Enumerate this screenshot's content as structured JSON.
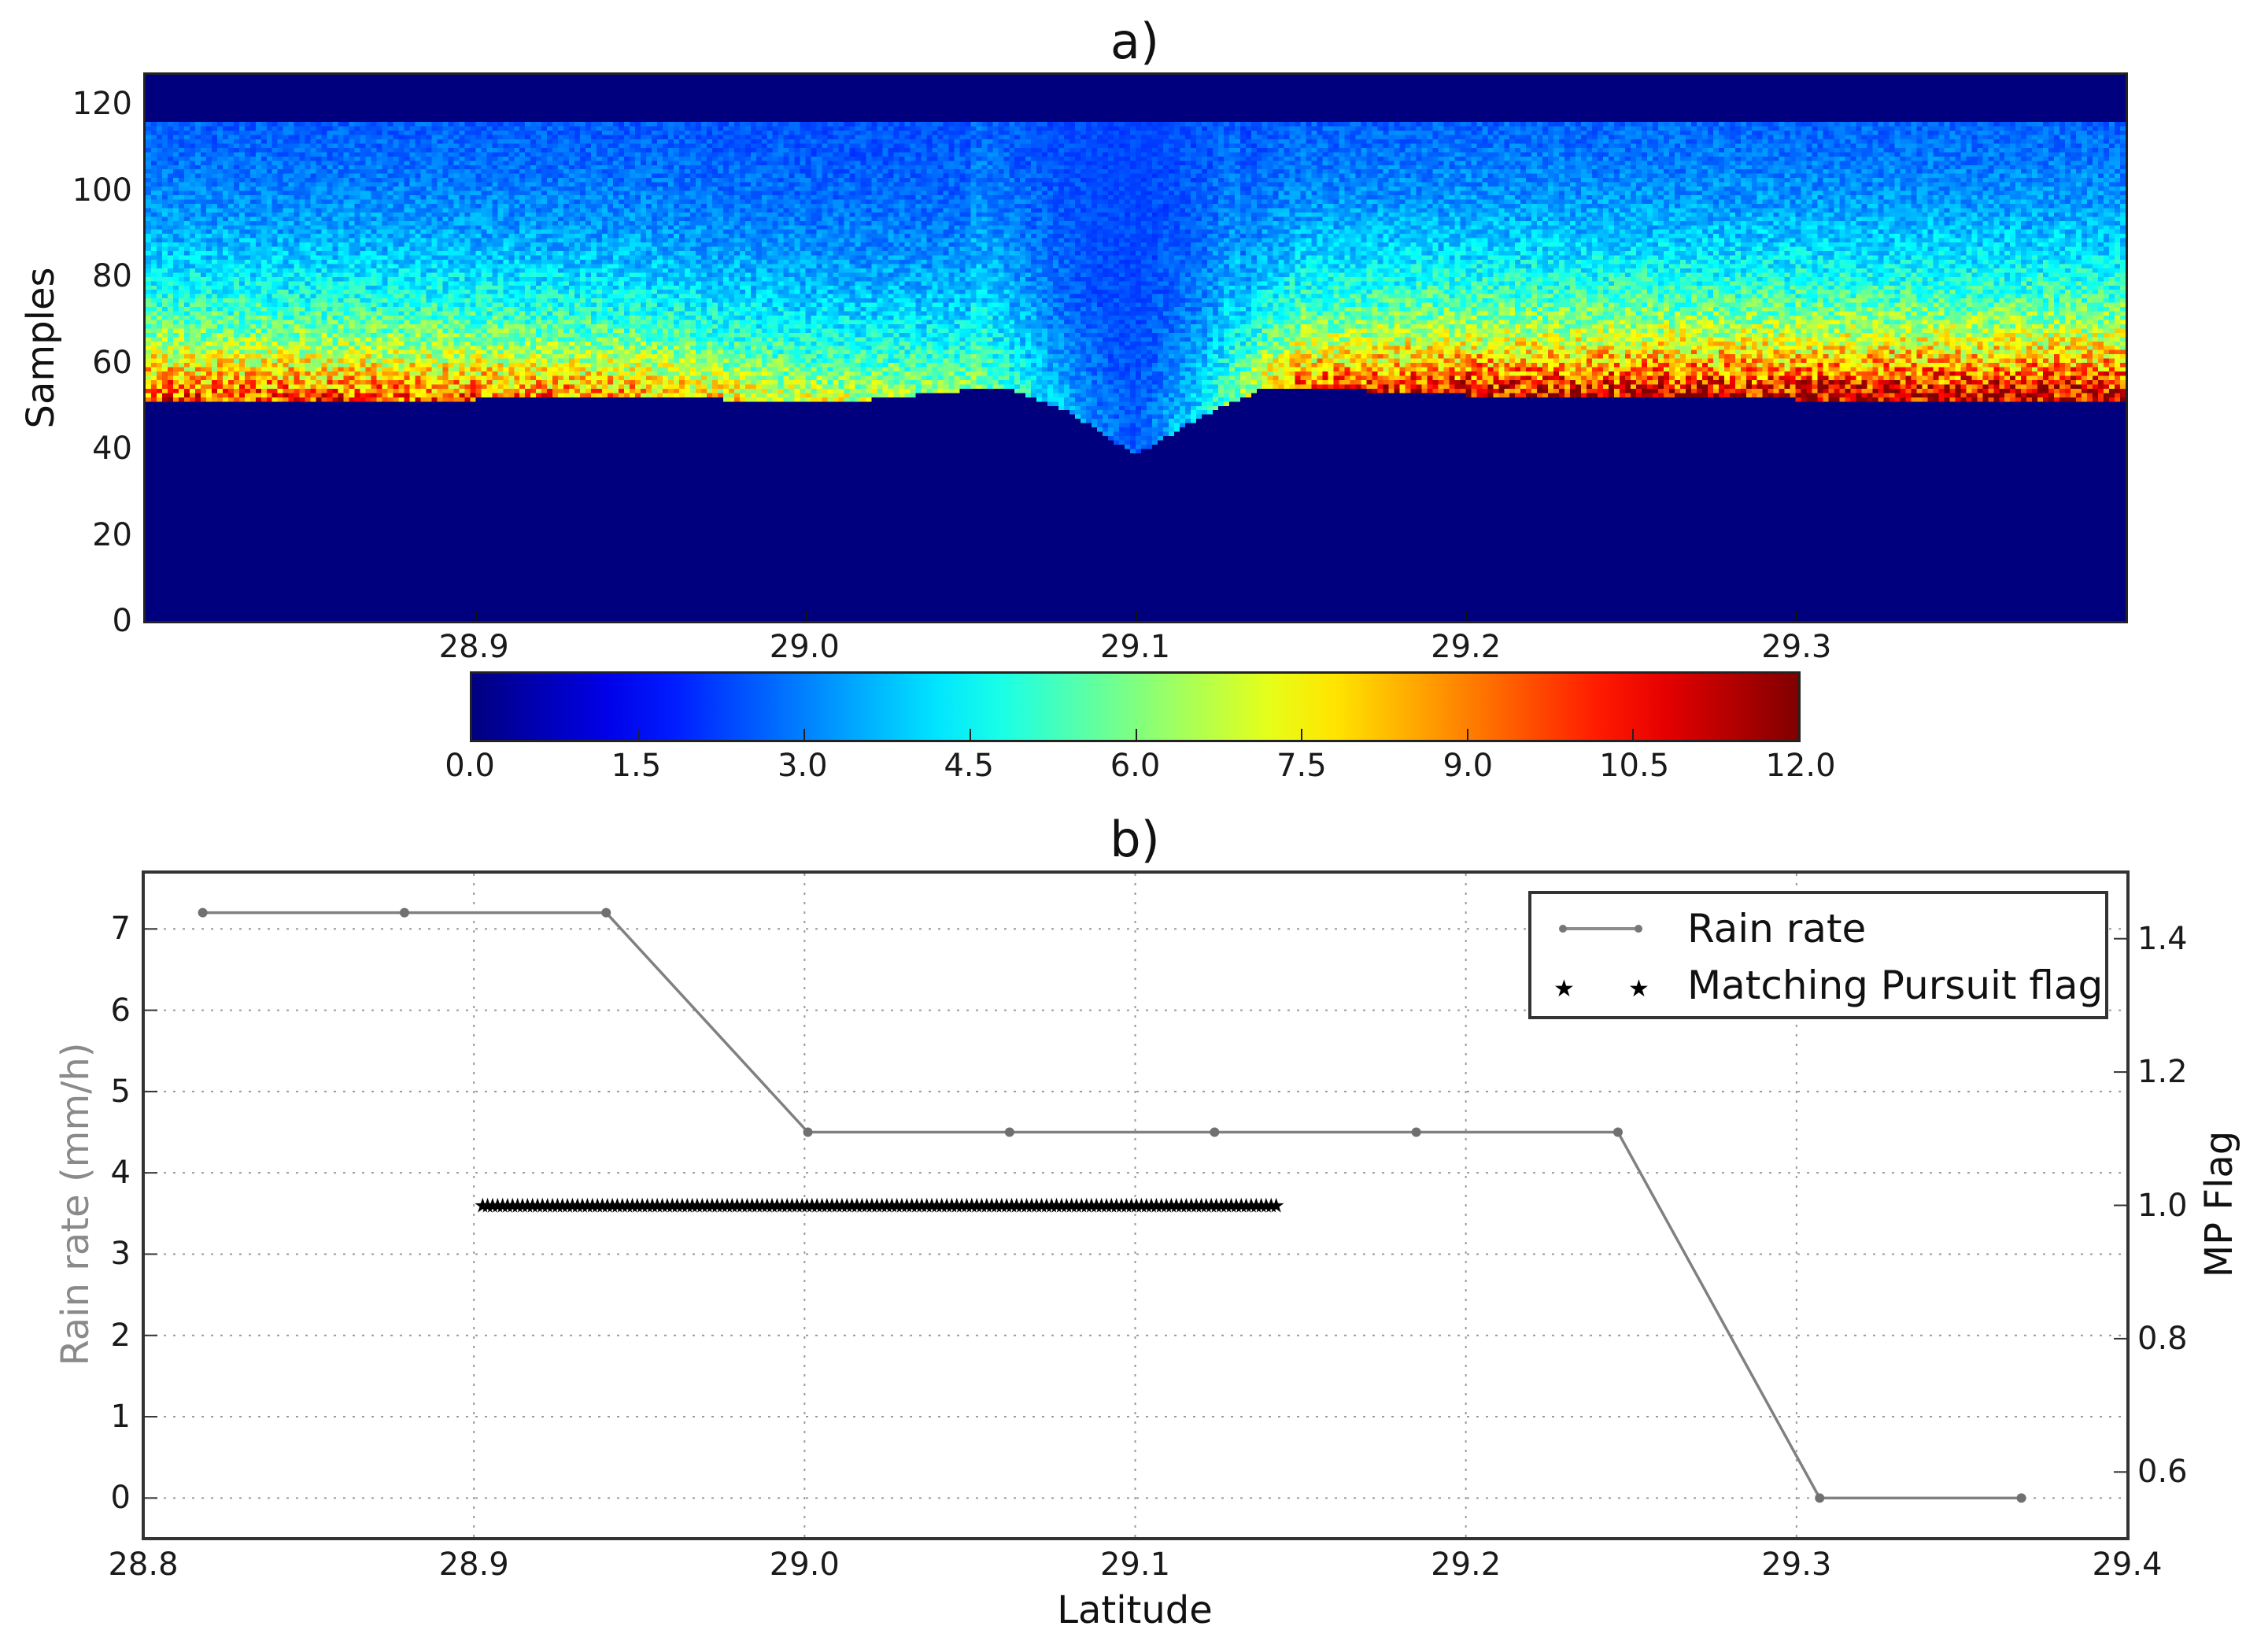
{
  "figure": {
    "panel_a_title": "a)",
    "panel_b_title": "b)"
  },
  "chart_data": [
    {
      "type": "heatmap",
      "title": "a)",
      "xlabel": "",
      "ylabel": "Samples",
      "xlim": [
        28.8,
        29.4
      ],
      "ylim": [
        0,
        127
      ],
      "xticks": [
        "28.9",
        "29.0",
        "29.1",
        "29.2",
        "29.3"
      ],
      "xtick_values": [
        28.9,
        29.0,
        29.1,
        29.2,
        29.3
      ],
      "yticks": [
        "0",
        "20",
        "40",
        "60",
        "80",
        "100",
        "120"
      ],
      "ytick_values": [
        0,
        20,
        40,
        60,
        80,
        100,
        120
      ],
      "colormap": "jet",
      "colorbar": {
        "vmin": 0.0,
        "vmax": 12.0,
        "ticks": [
          "0.0",
          "1.5",
          "3.0",
          "4.5",
          "6.0",
          "7.5",
          "9.0",
          "10.5",
          "12.0"
        ],
        "orientation": "horizontal"
      },
      "description": "Waveform intensity vs sample gate along latitude; bright band (peak ~10-12) near samples 52-62, tail up to ~115; V-shaped notch reaching sample ~38 at latitude ~29.10; samples above ~116 are zero.",
      "leading_edge_profile": {
        "lat": [
          28.8,
          28.9,
          28.95,
          29.0,
          29.02,
          29.06,
          29.08,
          29.1,
          29.12,
          29.14,
          29.2,
          29.3,
          29.4
        ],
        "sample": [
          51,
          51,
          52,
          50,
          51,
          54,
          48,
          38,
          47,
          54,
          52,
          51,
          51
        ]
      },
      "peak_intensity_profile": {
        "lat": [
          28.8,
          28.9,
          28.95,
          29.0,
          29.05,
          29.08,
          29.1,
          29.12,
          29.15,
          29.2,
          29.3,
          29.4
        ],
        "peak": [
          10.0,
          9.5,
          8.5,
          7.0,
          6.0,
          3.0,
          2.0,
          4.0,
          9.5,
          11.0,
          11.5,
          11.5
        ]
      },
      "tail_top_sample": 116
    },
    {
      "type": "line",
      "title": "b)",
      "xlabel": "Latitude",
      "ylabel": "Rain rate (mm/h)",
      "ylabel_right": "MP Flag",
      "xlim": [
        28.8,
        29.4
      ],
      "ylim": [
        -0.5,
        7.7
      ],
      "ylim_right": [
        0.5,
        1.5
      ],
      "grid": true,
      "xticks": [
        "28.8",
        "28.9",
        "29.0",
        "29.1",
        "29.2",
        "29.3",
        "29.4"
      ],
      "xtick_values": [
        28.8,
        28.9,
        29.0,
        29.1,
        29.2,
        29.3,
        29.4
      ],
      "yticks": [
        "0",
        "1",
        "2",
        "3",
        "4",
        "5",
        "6",
        "7"
      ],
      "ytick_values": [
        0,
        1,
        2,
        3,
        4,
        5,
        6,
        7
      ],
      "yticks_right": [
        "0.6",
        "0.8",
        "1.0",
        "1.2",
        "1.4"
      ],
      "ytick_values_right": [
        0.6,
        0.8,
        1.0,
        1.2,
        1.4
      ],
      "legend_position": "upper right",
      "series": [
        {
          "name": "Rain rate",
          "axis": "left",
          "style": "line-dot",
          "color": "#808080",
          "x": [
            28.818,
            28.879,
            28.94,
            29.001,
            29.062,
            29.124,
            29.185,
            29.246,
            29.307,
            29.368
          ],
          "values": [
            7.2,
            7.2,
            7.2,
            4.5,
            4.5,
            4.5,
            4.5,
            4.5,
            0.0,
            0.0
          ]
        },
        {
          "name": "Matching Pursuit flag",
          "axis": "right",
          "style": "star-markers",
          "color": "#000000",
          "x_start": 28.902,
          "x_end": 29.142,
          "count": 160,
          "value": 1.0
        }
      ]
    }
  ],
  "legend": {
    "rain_rate_label": "Rain rate",
    "mp_flag_label": "Matching Pursuit flag"
  }
}
